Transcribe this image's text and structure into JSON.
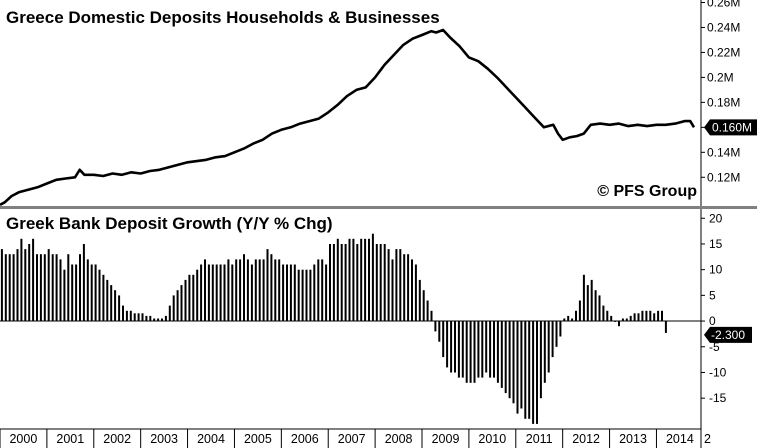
{
  "chart_data": [
    {
      "type": "line",
      "title": "Greece Domestic Deposits Households & Businesses",
      "watermark": "© PFS Group",
      "last_value_label": "0.160M",
      "yticks": [
        "0.26M",
        "0.24M",
        "0.22M",
        "0.2M",
        "0.18M",
        "0.16M",
        "0.14M",
        "0.12M"
      ],
      "ytick_values": [
        0.26,
        0.24,
        0.22,
        0.2,
        0.18,
        0.16,
        0.14,
        0.12
      ],
      "ylim": [
        0.097,
        0.262
      ],
      "xlim": [
        2000.0,
        2014.95
      ],
      "series": [
        {
          "x": [
            2000.0,
            2000.1,
            2000.25,
            2000.4,
            2000.6,
            2000.8,
            2001.0,
            2001.2,
            2001.4,
            2001.6,
            2001.7,
            2001.8,
            2002.0,
            2002.2,
            2002.4,
            2002.6,
            2002.8,
            2003.0,
            2003.2,
            2003.4,
            2003.6,
            2003.8,
            2004.0,
            2004.2,
            2004.4,
            2004.6,
            2004.8,
            2005.0,
            2005.2,
            2005.4,
            2005.6,
            2005.8,
            2006.0,
            2006.2,
            2006.4,
            2006.6,
            2006.8,
            2007.0,
            2007.2,
            2007.4,
            2007.6,
            2007.8,
            2008.0,
            2008.2,
            2008.4,
            2008.6,
            2008.8,
            2009.0,
            2009.2,
            2009.3,
            2009.45,
            2009.6,
            2009.8,
            2010.0,
            2010.2,
            2010.4,
            2010.6,
            2010.8,
            2011.0,
            2011.2,
            2011.4,
            2011.6,
            2011.8,
            2011.9,
            2012.0,
            2012.15,
            2012.3,
            2012.45,
            2012.6,
            2012.8,
            2013.0,
            2013.2,
            2013.4,
            2013.6,
            2013.8,
            2014.0,
            2014.2,
            2014.4,
            2014.6,
            2014.72,
            2014.8
          ],
          "y": [
            0.098,
            0.1,
            0.105,
            0.108,
            0.11,
            0.112,
            0.115,
            0.118,
            0.119,
            0.12,
            0.126,
            0.122,
            0.122,
            0.121,
            0.123,
            0.122,
            0.124,
            0.123,
            0.125,
            0.126,
            0.128,
            0.13,
            0.132,
            0.133,
            0.134,
            0.136,
            0.137,
            0.14,
            0.143,
            0.147,
            0.15,
            0.155,
            0.158,
            0.16,
            0.163,
            0.165,
            0.167,
            0.172,
            0.178,
            0.185,
            0.19,
            0.192,
            0.2,
            0.21,
            0.218,
            0.226,
            0.231,
            0.234,
            0.237,
            0.236,
            0.238,
            0.232,
            0.225,
            0.216,
            0.213,
            0.207,
            0.2,
            0.192,
            0.184,
            0.176,
            0.168,
            0.16,
            0.162,
            0.155,
            0.15,
            0.152,
            0.153,
            0.155,
            0.162,
            0.163,
            0.162,
            0.163,
            0.161,
            0.162,
            0.161,
            0.162,
            0.162,
            0.163,
            0.165,
            0.165,
            0.16
          ]
        }
      ]
    },
    {
      "type": "bar",
      "title": "Greek Bank Deposit Growth (Y/Y % Chg)",
      "last_value_label": "-2.300",
      "yticks": [
        "20",
        "15",
        "10",
        "5",
        "0",
        "-5",
        "-10",
        "-15"
      ],
      "ytick_values": [
        20,
        15,
        10,
        5,
        0,
        -5,
        -10,
        -15
      ],
      "ylim": [
        -21,
        21.8
      ],
      "xlim": [
        2000.0,
        2014.95
      ],
      "bar_start": 2000.04,
      "bar_step": 0.0833,
      "values": [
        14,
        13,
        13,
        13,
        14,
        16,
        14,
        15,
        16,
        13,
        13,
        13,
        14,
        13,
        13,
        12,
        10,
        13,
        11,
        11,
        13,
        15,
        12,
        11,
        11,
        10,
        9,
        8,
        7,
        6,
        5,
        3,
        2,
        2,
        1.5,
        1.5,
        1.5,
        1,
        1,
        0.5,
        0.5,
        0.5,
        1,
        3,
        5,
        6,
        7,
        8,
        9,
        9,
        10,
        11,
        12,
        11,
        11,
        11,
        11,
        11,
        12,
        11,
        12,
        12,
        13,
        12,
        11,
        12,
        12,
        12,
        14,
        13,
        12,
        12,
        11,
        11,
        11,
        11,
        10,
        10,
        10,
        10,
        11,
        12,
        12,
        11,
        15,
        15,
        16,
        15,
        15,
        16,
        16,
        15,
        16,
        16,
        16,
        17,
        15,
        15,
        15,
        14,
        12,
        14,
        14,
        13,
        13,
        12,
        11,
        8,
        6,
        4,
        2,
        -2,
        -4,
        -7,
        -9,
        -10,
        -10,
        -11,
        -11,
        -12,
        -12,
        -12,
        -11,
        -11,
        -10,
        -11,
        -11,
        -12,
        -13,
        -14,
        -15,
        -16,
        -18,
        -17,
        -19,
        -19,
        -20,
        -20,
        -15,
        -12,
        -10,
        -7,
        -5,
        -3,
        0.5,
        1,
        0.5,
        2,
        4,
        9,
        7,
        8,
        6,
        5,
        3,
        2,
        1,
        0,
        -1,
        0.5,
        0.5,
        1,
        1.5,
        1.5,
        2,
        2,
        2,
        1.5,
        2,
        2,
        -2.3
      ],
      "xtick_labels": [
        "2000",
        "2001",
        "2002",
        "2003",
        "2004",
        "2005",
        "2006",
        "2007",
        "2008",
        "2009",
        "2010",
        "2011",
        "2012",
        "2013",
        "2014",
        "2"
      ]
    }
  ],
  "colors": {
    "line": "#000000",
    "bar": "#000000",
    "divider": "#808080",
    "label_box": "#000000",
    "label_text": "#ffffff"
  }
}
